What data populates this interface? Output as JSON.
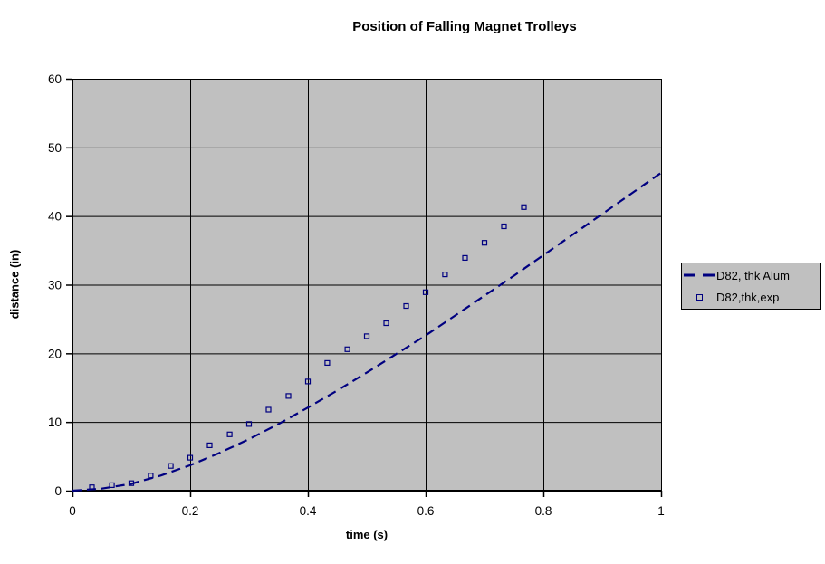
{
  "title": "Position of Falling Magnet Trolleys",
  "colors": {
    "page_bg": "#ffffff",
    "plot_bg": "#c0c0c0",
    "grid": "#000000",
    "axis": "#000000",
    "text": "#000000",
    "series_navy": "#000080",
    "legend_bg": "#c0c0c0"
  },
  "legend": {
    "position": "right",
    "entries": [
      {
        "label": "D82, thk Alum",
        "swatch": "dashed-line"
      },
      {
        "label": "D82,thk,exp",
        "swatch": "open-square-marker"
      }
    ]
  },
  "chart_data": {
    "type": "line",
    "title": "Position of Falling Magnet Trolleys",
    "xlabel": "time (s)",
    "ylabel": "distance (in)",
    "xlim": [
      0,
      1
    ],
    "ylim": [
      0,
      60
    ],
    "x_ticks": [
      0,
      0.2,
      0.4,
      0.6,
      0.8,
      1
    ],
    "x_tick_labels": [
      "0",
      "0.2",
      "0.4",
      "0.6",
      "0.8",
      "1"
    ],
    "y_ticks": [
      0,
      10,
      20,
      30,
      40,
      50,
      60
    ],
    "y_tick_labels": [
      "0",
      "10",
      "20",
      "30",
      "40",
      "50",
      "60"
    ],
    "grid": true,
    "legend_position": "right",
    "series": [
      {
        "name": "D82, thk Alum",
        "style": "dashed-line",
        "color": "#000080",
        "x": [
          0,
          0.05,
          0.1,
          0.15,
          0.2,
          0.25,
          0.3,
          0.35,
          0.4,
          0.45,
          0.5,
          0.55,
          0.6,
          0.65,
          0.7,
          0.75,
          0.8,
          0.85,
          0.9,
          0.95,
          1.0
        ],
        "y": [
          0,
          0.3,
          1.0,
          2.2,
          3.7,
          5.5,
          7.5,
          9.7,
          12.1,
          14.6,
          17.2,
          19.9,
          22.6,
          25.5,
          28.4,
          31.3,
          34.3,
          37.3,
          40.3,
          43.3,
          46.3
        ]
      },
      {
        "name": "D82,thk,exp",
        "style": "open-square-markers",
        "color": "#000080",
        "x": [
          0.033,
          0.067,
          0.1,
          0.133,
          0.167,
          0.2,
          0.233,
          0.267,
          0.3,
          0.333,
          0.367,
          0.4,
          0.433,
          0.467,
          0.5,
          0.533,
          0.567,
          0.6,
          0.633,
          0.667,
          0.7,
          0.733,
          0.767
        ],
        "y": [
          0.5,
          0.8,
          1.1,
          2.2,
          3.6,
          4.8,
          6.6,
          8.2,
          9.7,
          11.8,
          13.8,
          15.9,
          18.6,
          20.6,
          22.5,
          24.4,
          26.9,
          28.9,
          31.5,
          33.9,
          36.1,
          38.5,
          41.3
        ]
      }
    ]
  }
}
